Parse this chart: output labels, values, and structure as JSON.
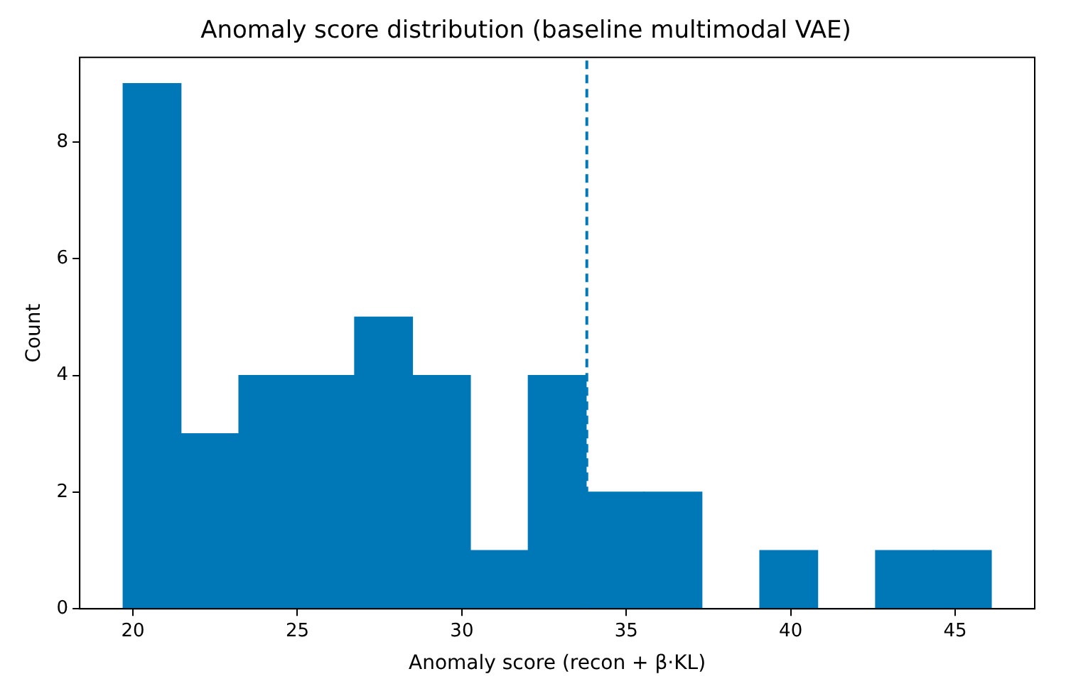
{
  "chart_data": {
    "type": "histogram",
    "title": "Anomaly score distribution (baseline multimodal VAE)",
    "xlabel": "Anomaly score (recon + β·KL)",
    "ylabel": "Count",
    "bins": [
      19.7,
      21.46,
      23.22,
      24.98,
      26.74,
      28.5,
      30.26,
      32.02,
      33.78,
      35.54,
      37.3,
      39.06,
      40.82,
      42.58,
      44.34,
      46.1
    ],
    "values": [
      9,
      3,
      4,
      4,
      5,
      4,
      1,
      4,
      2,
      2,
      0,
      1,
      0,
      1,
      1
    ],
    "color": "#0077b6",
    "xlim": [
      18.38,
      47.42
    ],
    "xticks": [
      20,
      25,
      30,
      35,
      40,
      45
    ],
    "ylim": [
      0,
      9.45
    ],
    "yticks": [
      0,
      2,
      4,
      6,
      8
    ],
    "grid": false,
    "ref_lines": [
      {
        "axis": "x",
        "value": 33.8,
        "color": "#0077b6",
        "line_style": "dashed"
      }
    ]
  }
}
